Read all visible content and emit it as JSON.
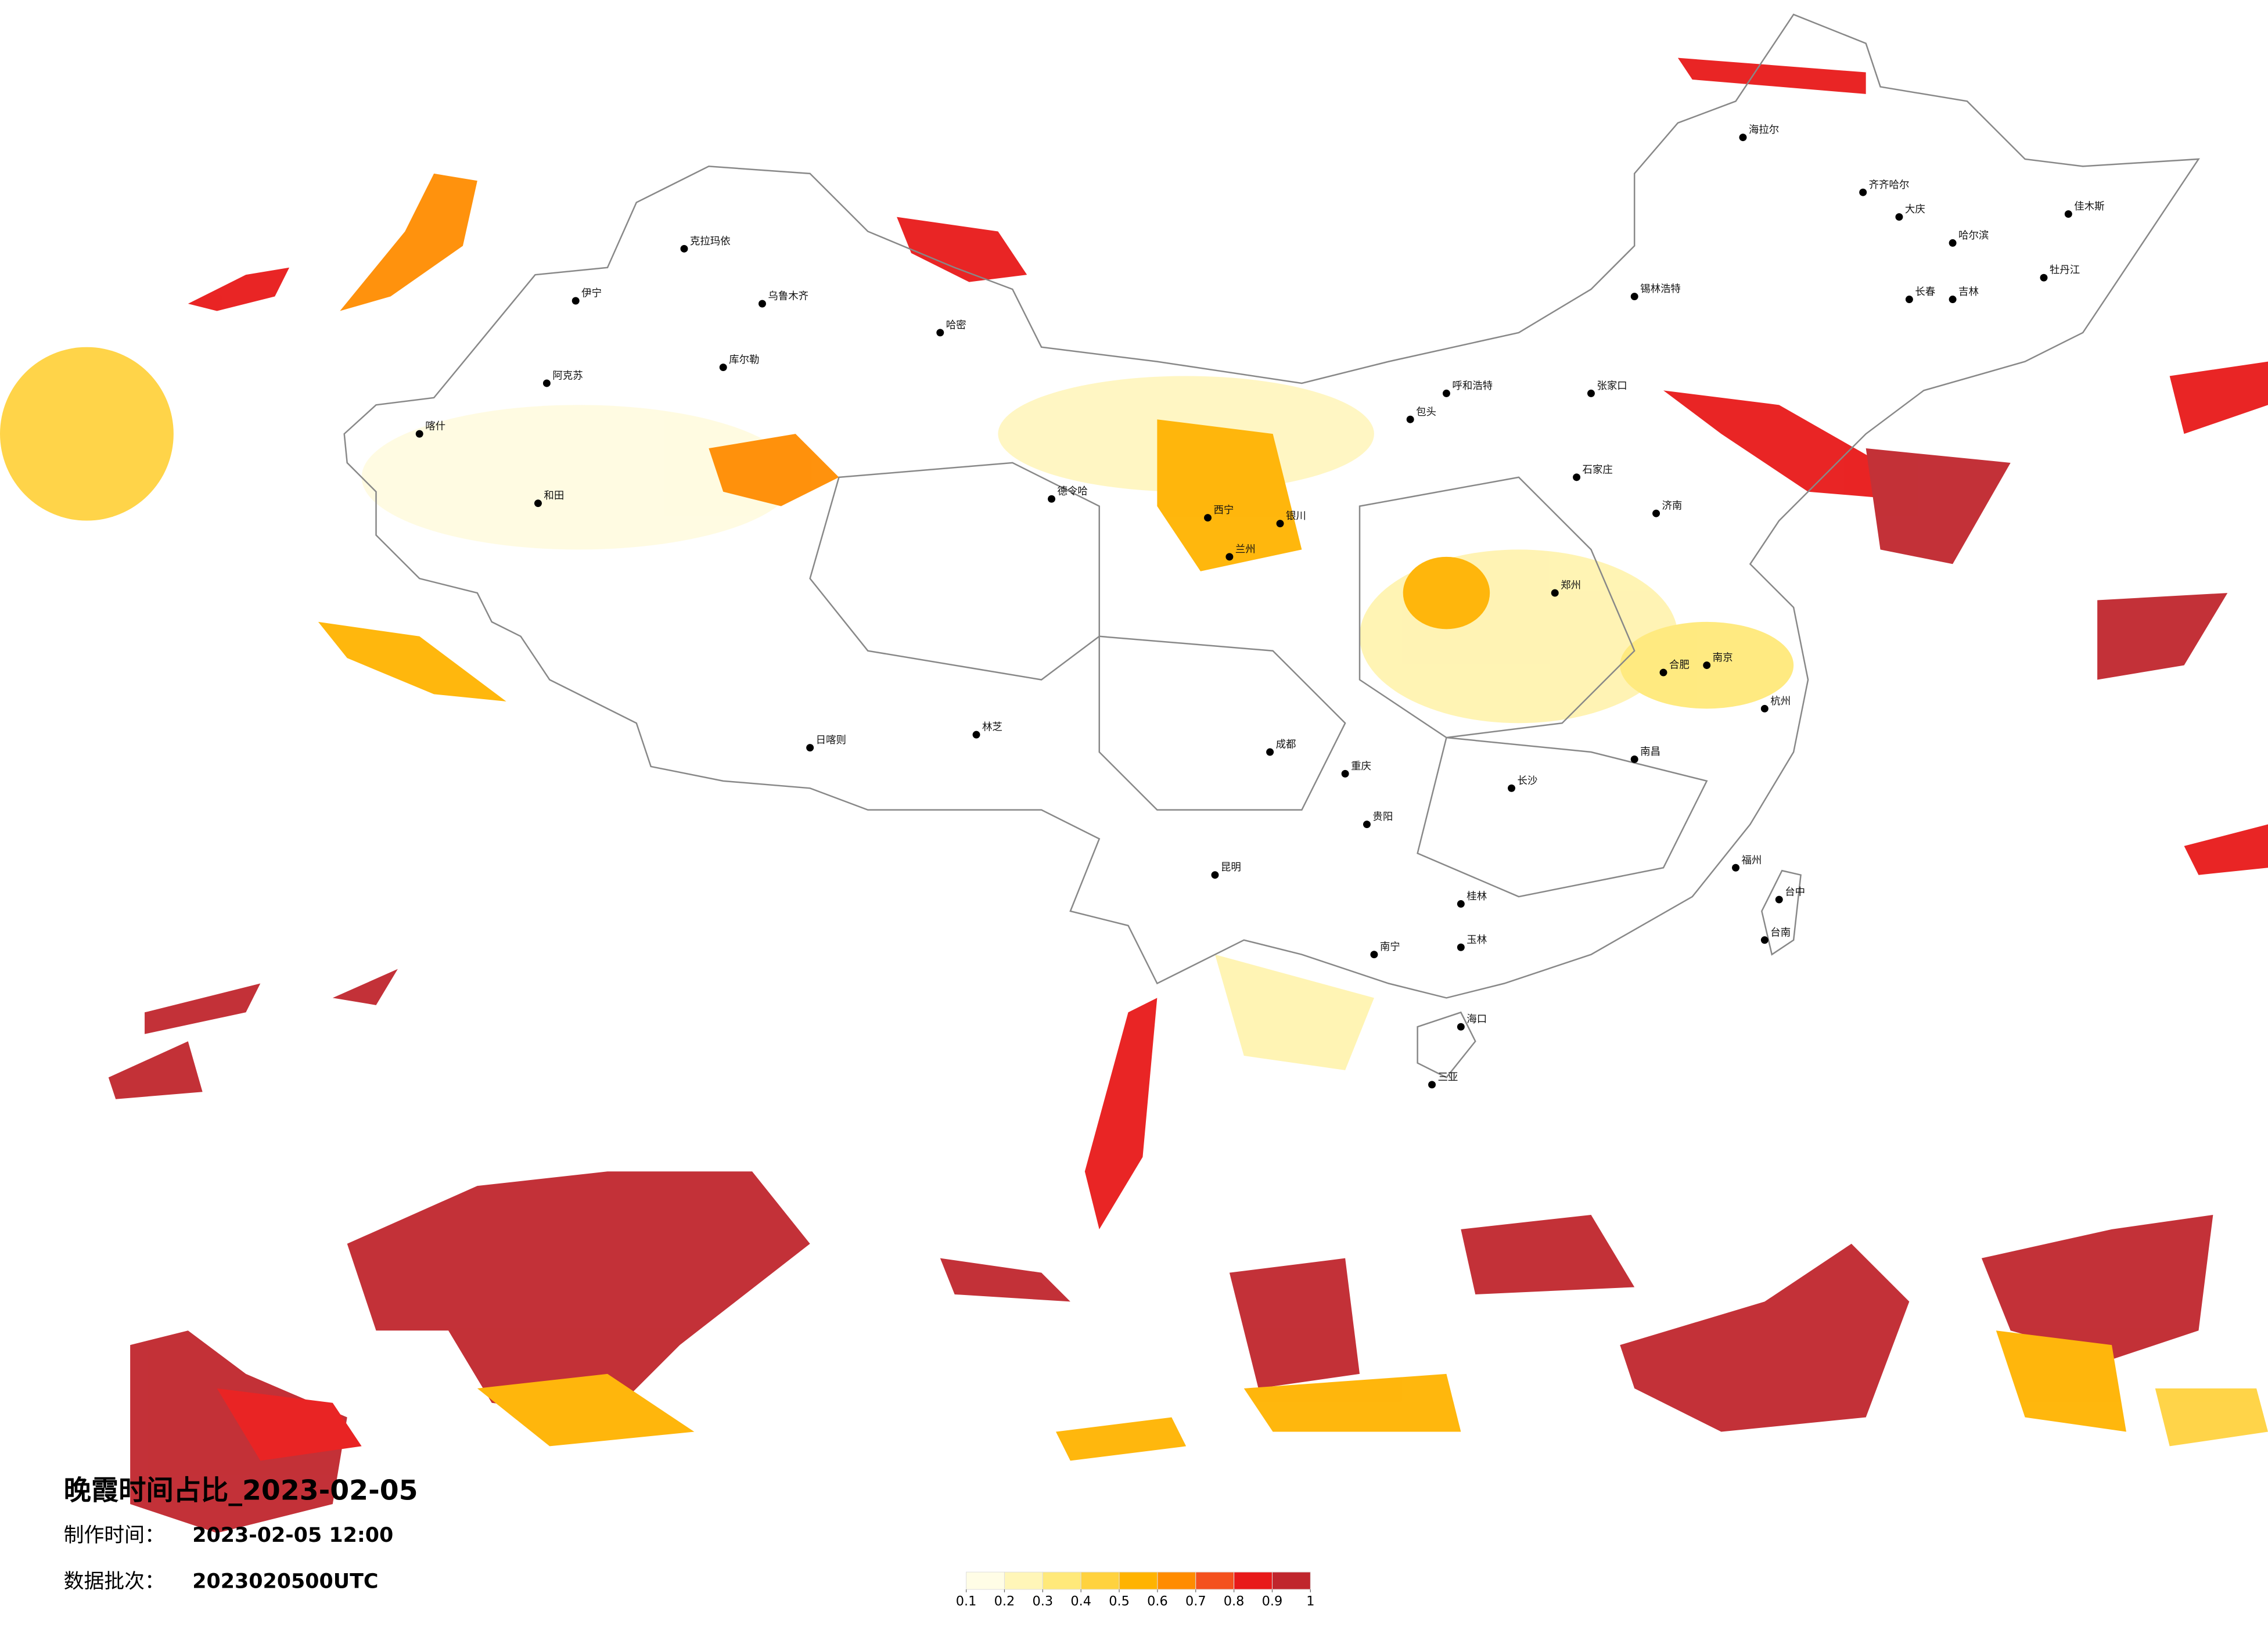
{
  "title": "晚霞时间占比_2023-02-05",
  "production": {
    "label": "制作时间：",
    "value": "2023-02-05 12:00"
  },
  "batch": {
    "label": "数据批次：",
    "value": "2023020500UTC"
  },
  "legend": {
    "colors": [
      "#fffde6",
      "#fff6b8",
      "#ffe97a",
      "#ffd23f",
      "#ffb300",
      "#ff8c00",
      "#f4511e",
      "#e81919",
      "#c0262d"
    ],
    "ticks": [
      0.1,
      0.2,
      0.3,
      0.4,
      0.5,
      0.6,
      0.7,
      0.8,
      0.9,
      1
    ]
  },
  "cities": [
    "伊宁",
    "克拉玛依",
    "乌鲁木齐",
    "库尔勒",
    "阿克苏",
    "和田",
    "喀什",
    "哈密",
    "日喀则",
    "林芝",
    "德令哈",
    "海拉尔",
    "齐齐哈尔",
    "大庆",
    "哈尔滨",
    "佳木斯",
    "牡丹江",
    "长春",
    "吉林",
    "锡林浩特",
    "呼和浩特",
    "包头",
    "张家口",
    "石家庄",
    "济南",
    "郑州",
    "西宁",
    "兰州",
    "银川",
    "成都",
    "重庆",
    "贵阳",
    "昆明",
    "南宁",
    "海口",
    "三亚",
    "桂林",
    "玉林",
    "长沙",
    "南昌",
    "福州",
    "台中",
    "台南",
    "合肥",
    "南京",
    "杭州"
  ]
}
